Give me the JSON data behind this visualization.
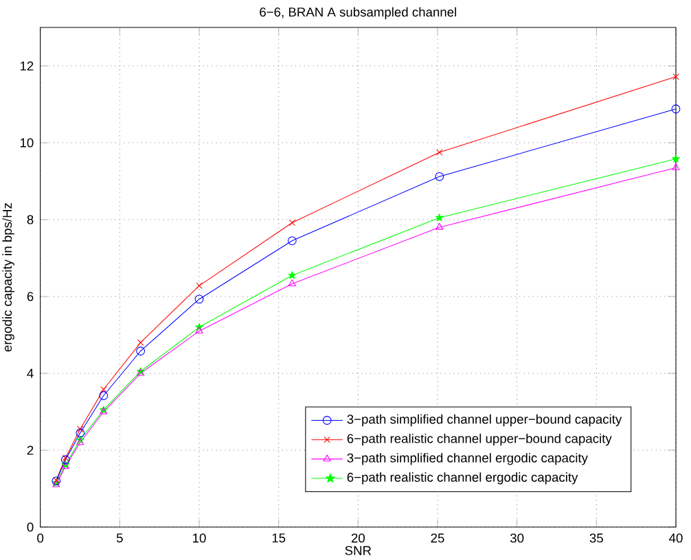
{
  "chart_data": {
    "type": "line",
    "title": "6−6, BRAN A subsampled channel",
    "xlabel": "SNR",
    "ylabel": "ergodic capacity in bps/Hz",
    "x": [
      1,
      1.585,
      2.512,
      3.981,
      6.31,
      10,
      15.85,
      25.12,
      40
    ],
    "series": [
      {
        "name": "3−path simplified channel upper−bound capacity",
        "color": "#0000ff",
        "marker": "circle",
        "values": [
          1.2,
          1.75,
          2.45,
          3.42,
          4.58,
          5.93,
          7.45,
          9.12,
          10.88
        ]
      },
      {
        "name": "6−path realistic channel upper−bound capacity",
        "color": "#ff0000",
        "marker": "cross",
        "values": [
          1.22,
          1.8,
          2.55,
          3.58,
          4.8,
          6.28,
          7.92,
          9.75,
          11.72
        ]
      },
      {
        "name": "3−path simplified channel ergodic capacity",
        "color": "#ff00ff",
        "marker": "triangle",
        "values": [
          1.1,
          1.58,
          2.2,
          3.0,
          4.0,
          5.1,
          6.33,
          7.8,
          9.35
        ]
      },
      {
        "name": "6−path realistic channel ergodic capacity",
        "color": "#00ff00",
        "marker": "star",
        "values": [
          1.15,
          1.62,
          2.27,
          3.05,
          4.05,
          5.2,
          6.55,
          8.05,
          9.58
        ]
      }
    ],
    "xlim": [
      0,
      40
    ],
    "xticks": [
      0,
      5,
      10,
      15,
      20,
      25,
      30,
      35,
      40
    ],
    "ylim": [
      0,
      13
    ],
    "yticks": [
      0,
      2,
      4,
      6,
      8,
      10,
      12
    ],
    "grid": true,
    "legend": "bottom right",
    "line_style": "solid"
  }
}
